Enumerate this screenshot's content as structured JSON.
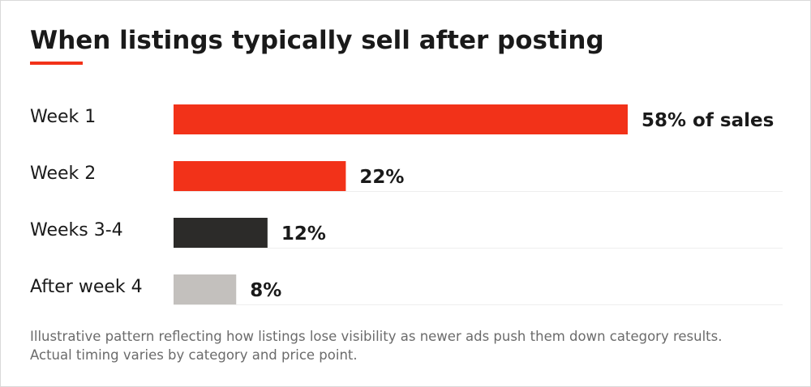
{
  "title": "When listings typically sell after posting",
  "colors": {
    "accent": "#f23219",
    "dark": "#2c2b29",
    "light": "#c3c0bd",
    "text": "#1a1a1a",
    "muted": "#6b6b6b",
    "divider": "#eeeeee"
  },
  "footnote": "Illustrative pattern reflecting how listings lose visibility as newer ads push them down category results. Actual timing varies by category and price point.",
  "chart_data": {
    "type": "bar",
    "orientation": "horizontal",
    "categories": [
      "Week 1",
      "Week 2",
      "Weeks 3-4",
      "After week 4"
    ],
    "values": [
      58,
      22,
      12,
      8
    ],
    "value_labels": [
      "58% of sales",
      "22%",
      "12%",
      "8%"
    ],
    "bar_colors": [
      "#f23219",
      "#f23219",
      "#2c2b29",
      "#c3c0bd"
    ],
    "unit": "%",
    "xlim": [
      0,
      58
    ],
    "grid": false,
    "legend": "none"
  }
}
